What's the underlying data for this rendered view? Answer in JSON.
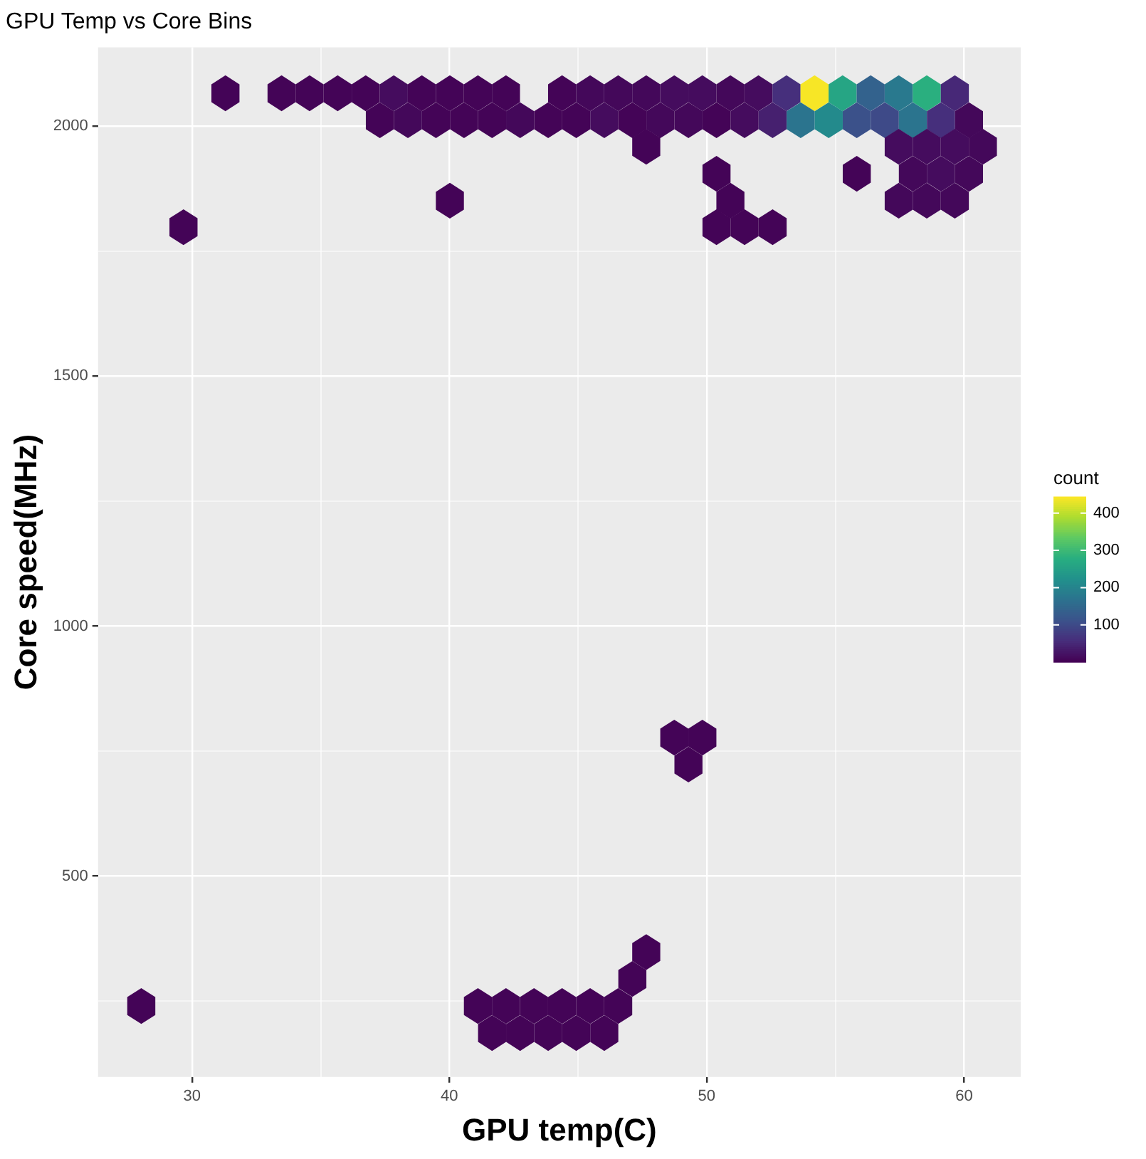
{
  "chart_data": {
    "type": "scatter",
    "title": "GPU Temp vs Core Bins",
    "xlabel": "GPU temp(C)",
    "ylabel": "Core speed(MHz)",
    "clabel": "count",
    "x": [
      31.3,
      33.48,
      34.57,
      35.66,
      36.75,
      37.84,
      38.93,
      40.02,
      41.11,
      42.2,
      44.38,
      45.47,
      46.56,
      47.65,
      48.74,
      49.83,
      50.92,
      52.01,
      53.1,
      54.19,
      55.28,
      56.37,
      57.46,
      58.55,
      59.64,
      37.3,
      38.39,
      39.48,
      40.57,
      41.66,
      42.75,
      43.84,
      44.93,
      46.02,
      47.11,
      48.2,
      49.29,
      50.38,
      51.47,
      52.56,
      53.65,
      54.74,
      55.83,
      56.92,
      58.01,
      59.1,
      60.19,
      47.65,
      57.46,
      58.55,
      59.64,
      60.73,
      50.38,
      55.83,
      58.01,
      59.1,
      60.19,
      40.02,
      50.92,
      57.46,
      58.55,
      59.64,
      29.67,
      50.38,
      51.47,
      52.56,
      48.74,
      49.83,
      49.29,
      47.65,
      47.11,
      28.03,
      41.11,
      42.2,
      43.29,
      44.38,
      45.47,
      46.56,
      41.66,
      42.75,
      43.84,
      44.93,
      46.02
    ],
    "values": [
      2066,
      2066,
      2066,
      2066,
      2066,
      2066,
      2066,
      2066,
      2066,
      2066,
      2066,
      2066,
      2066,
      2066,
      2066,
      2066,
      2066,
      2066,
      2066,
      2066,
      2066,
      2066,
      2066,
      2066,
      2066,
      2012,
      2012,
      2012,
      2012,
      2012,
      2012,
      2012,
      2012,
      2012,
      2012,
      2012,
      2012,
      2012,
      2012,
      2012,
      2012,
      2012,
      2012,
      2012,
      2012,
      2012,
      2012,
      1959,
      1959,
      1959,
      1959,
      1959,
      1905,
      1905,
      1905,
      1905,
      1905,
      1851,
      1851,
      1851,
      1851,
      1851,
      1798,
      1798,
      1798,
      1798,
      777,
      777,
      723,
      348,
      294,
      240,
      240,
      240,
      240,
      240,
      240,
      240,
      186,
      186,
      186,
      186,
      186
    ],
    "cvalues": [
      5,
      5,
      5,
      5,
      5,
      15,
      5,
      5,
      5,
      5,
      5,
      10,
      10,
      10,
      15,
      15,
      10,
      15,
      60,
      440,
      260,
      140,
      180,
      280,
      50,
      5,
      10,
      5,
      5,
      5,
      10,
      5,
      5,
      15,
      5,
      10,
      10,
      5,
      15,
      40,
      170,
      210,
      110,
      100,
      170,
      60,
      10,
      5,
      15,
      15,
      15,
      10,
      5,
      5,
      10,
      15,
      10,
      5,
      5,
      10,
      10,
      10,
      5,
      5,
      5,
      5,
      5,
      5,
      5,
      5,
      5,
      5,
      5,
      5,
      5,
      5,
      5,
      5,
      5,
      5,
      5,
      5,
      5
    ],
    "xlim": [
      26.35,
      62.2
    ],
    "xticks": [
      30,
      {
        "value": 35,
        "label": null
      },
      40,
      {
        "value": 45,
        "label": null
      },
      50,
      {
        "value": 55,
        "label": null
      },
      60
    ],
    "ylim": [
      98,
      2158
    ],
    "yticks": [
      {
        "value": 250,
        "label": null
      },
      500,
      {
        "value": 750,
        "label": null
      },
      1000,
      {
        "value": 1250,
        "label": null
      },
      1500,
      {
        "value": 1750,
        "label": null
      },
      2000
    ],
    "clim": [
      1,
      444
    ],
    "cticks": [
      100,
      200,
      300,
      400
    ],
    "grid": true
  }
}
